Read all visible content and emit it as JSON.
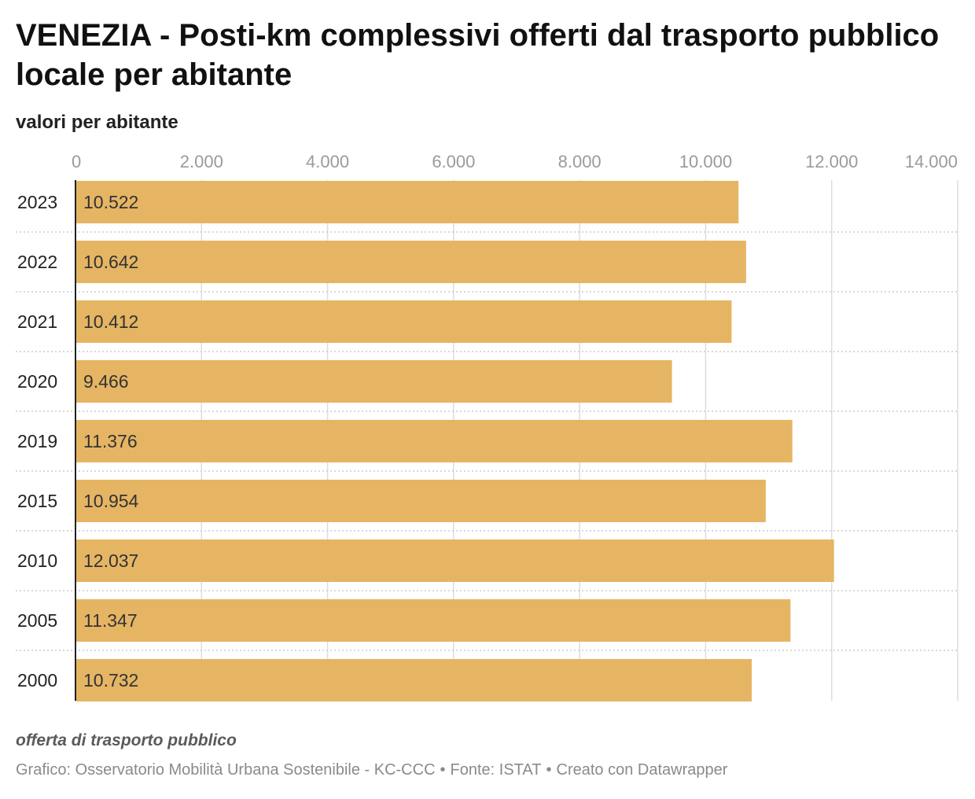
{
  "header": {
    "title": "VENEZIA - Posti-km complessivi offerti dal trasporto pubblico locale per abitante",
    "subtitle": "valori per abitante"
  },
  "chart_data": {
    "type": "bar",
    "orientation": "horizontal",
    "categories": [
      "2023",
      "2022",
      "2021",
      "2020",
      "2019",
      "2015",
      "2010",
      "2005",
      "2000"
    ],
    "values": [
      10522,
      10642,
      10412,
      9466,
      11376,
      10954,
      12037,
      11347,
      10732
    ],
    "value_labels": [
      "10.522",
      "10.642",
      "10.412",
      "9.466",
      "11.376",
      "10.954",
      "12.037",
      "11.347",
      "10.732"
    ],
    "xlim": [
      0,
      14000
    ],
    "ticks": [
      0,
      2000,
      4000,
      6000,
      8000,
      10000,
      12000,
      14000
    ],
    "tick_labels": [
      "0",
      "2.000",
      "4.000",
      "6.000",
      "8.000",
      "10.000",
      "12.000",
      "14.000"
    ],
    "axis_position": "top",
    "grid": true,
    "bar_color": "#e6b563"
  },
  "footer": {
    "note": "offerta di trasporto pubblico",
    "credit_chart": "Grafico: Osservatorio Mobilità Urbana Sostenibile - KC-CCC",
    "credit_source": "Fonte: ISTAT",
    "credit_tool": "Creato con Datawrapper",
    "separator": "•"
  }
}
